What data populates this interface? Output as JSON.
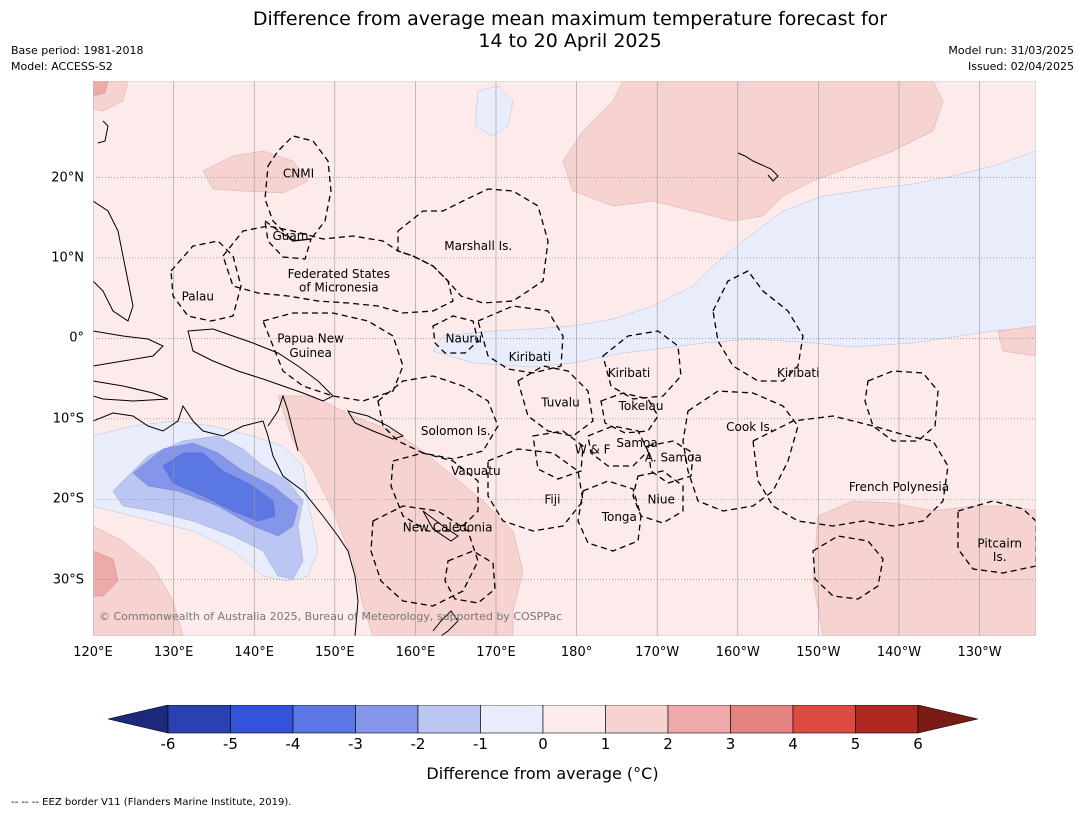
{
  "header": {
    "title_line1": "Difference from average mean maximum temperature forecast for",
    "title_line2": "14 to 20 April 2025",
    "base_period": "Base period: 1981-2018",
    "model": "Model: ACCESS-S2",
    "model_run": "Model run: 31/03/2025",
    "issued": "Issued: 02/04/2025"
  },
  "map": {
    "lon_range": [
      120,
      237
    ],
    "lat_range": [
      -37,
      32
    ],
    "lon_ticks": [
      {
        "lon": 120,
        "label": "120°E"
      },
      {
        "lon": 130,
        "label": "130°E"
      },
      {
        "lon": 140,
        "label": "140°E"
      },
      {
        "lon": 150,
        "label": "150°E"
      },
      {
        "lon": 160,
        "label": "160°E"
      },
      {
        "lon": 170,
        "label": "170°E"
      },
      {
        "lon": 180,
        "label": "180°"
      },
      {
        "lon": 190,
        "label": "170°W"
      },
      {
        "lon": 200,
        "label": "160°W"
      },
      {
        "lon": 210,
        "label": "150°W"
      },
      {
        "lon": 220,
        "label": "140°W"
      },
      {
        "lon": 230,
        "label": "130°W"
      }
    ],
    "lat_ticks": [
      {
        "lat": 20,
        "label": "20°N"
      },
      {
        "lat": 10,
        "label": "10°N"
      },
      {
        "lat": 0,
        "label": "0°"
      },
      {
        "lat": -10,
        "label": "10°S"
      },
      {
        "lat": -20,
        "label": "20°S"
      },
      {
        "lat": -30,
        "label": "30°S"
      }
    ],
    "regions": [
      {
        "name": "CNMI",
        "lon": 145.5,
        "lat": 20.5
      },
      {
        "name": "Guam",
        "lon": 144.5,
        "lat": 12.7
      },
      {
        "name": "Marshall Is.",
        "lon": 167.8,
        "lat": 11.5
      },
      {
        "name": "Federated States",
        "lon": 150.5,
        "lat": 8.0
      },
      {
        "name": "of Micronesia",
        "lon": 150.5,
        "lat": 6.3
      },
      {
        "name": "Palau",
        "lon": 133.0,
        "lat": 5.2
      },
      {
        "name": "Papua New",
        "lon": 147.0,
        "lat": 0.0
      },
      {
        "name": "Guinea",
        "lon": 147.0,
        "lat": -1.8
      },
      {
        "name": "Nauru",
        "lon": 166.0,
        "lat": 0.0
      },
      {
        "name": "Kiribati",
        "lon": 174.2,
        "lat": -2.3
      },
      {
        "name": "Kiribati",
        "lon": 186.5,
        "lat": -4.3
      },
      {
        "name": "Kiribati",
        "lon": 207.5,
        "lat": -4.3
      },
      {
        "name": "Tuvalu",
        "lon": 178.0,
        "lat": -8.0
      },
      {
        "name": "Tokelau",
        "lon": 188.0,
        "lat": -8.4
      },
      {
        "name": "Cook Is.",
        "lon": 201.5,
        "lat": -11.0
      },
      {
        "name": "Solomon Is.",
        "lon": 165.0,
        "lat": -11.5
      },
      {
        "name": "Samoa",
        "lon": 187.5,
        "lat": -13.0
      },
      {
        "name": "W & F",
        "lon": 182.0,
        "lat": -13.8
      },
      {
        "name": "A. Samoa",
        "lon": 192.0,
        "lat": -14.8
      },
      {
        "name": "Vanuatu",
        "lon": 167.5,
        "lat": -16.5
      },
      {
        "name": "French Polynesia",
        "lon": 220.0,
        "lat": -18.5
      },
      {
        "name": "Fiji",
        "lon": 177.0,
        "lat": -20.0
      },
      {
        "name": "Niue",
        "lon": 190.5,
        "lat": -20.0
      },
      {
        "name": "Tonga",
        "lon": 185.3,
        "lat": -22.2
      },
      {
        "name": "New Caledonia",
        "lon": 164.0,
        "lat": -23.5
      },
      {
        "name": "Pitcairn",
        "lon": 232.5,
        "lat": -25.5
      },
      {
        "name": "Is.",
        "lon": 232.5,
        "lat": -27.2
      }
    ],
    "copyright": "© Commonwealth of Australia 2025, Bureau of Meteorology, supported by COSPPac"
  },
  "colorbar": {
    "ticks": [
      "-6",
      "-5",
      "-4",
      "-3",
      "-2",
      "-1",
      "0",
      "1",
      "2",
      "3",
      "4",
      "5",
      "6"
    ],
    "colors": [
      "#2a41b0",
      "#3353dc",
      "#5b77e3",
      "#8596ea",
      "#bcc6f3",
      "#e8ecfb",
      "#fcebea",
      "#f6d2d0",
      "#eeaaa8",
      "#e58380",
      "#dc4a40",
      "#b0271f"
    ],
    "low_extend_color": "#1c2a7d",
    "high_extend_color": "#7a1b16",
    "label": "Difference from average (°C)"
  },
  "footer": {
    "text": "--  --  -- EEZ border V11 (Flanders Marine Institute, 2019)."
  }
}
